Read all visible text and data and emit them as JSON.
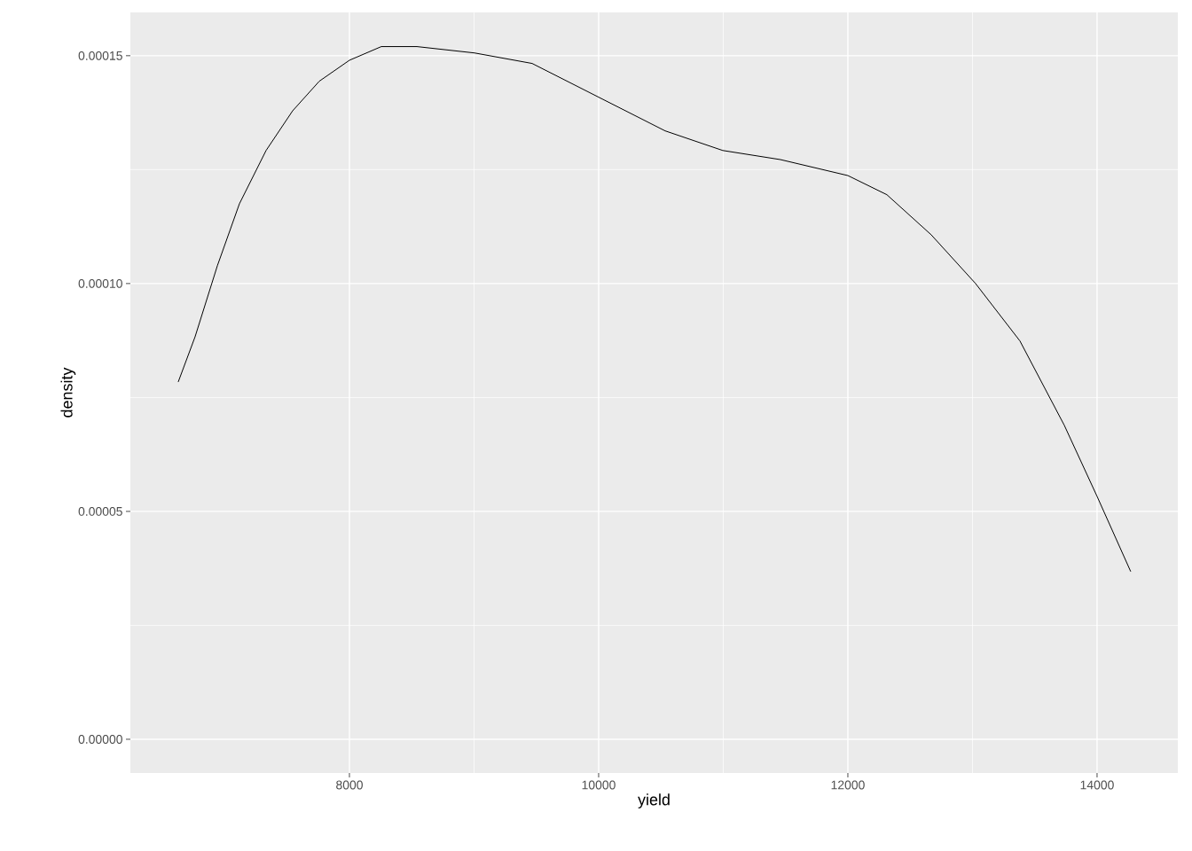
{
  "chart_data": {
    "type": "line",
    "xlabel": "yield",
    "ylabel": "density",
    "color": "#000000",
    "grid": true,
    "x": [
      6626,
      6761,
      6940,
      7117,
      7331,
      7544,
      7758,
      8000,
      8256,
      8541,
      9004,
      9466,
      10000,
      10534,
      10996,
      11459,
      12000,
      12313,
      12669,
      13025,
      13381,
      13737,
      14000,
      14270
    ],
    "values": [
      7.84e-05,
      8.83e-05,
      0.0001039,
      0.0001175,
      0.0001292,
      0.0001379,
      0.0001444,
      0.000149,
      0.000152,
      0.000152,
      0.0001506,
      0.0001483,
      0.0001409,
      0.0001335,
      0.0001292,
      0.0001272,
      0.0001237,
      0.0001195,
      0.0001107,
      0.0001,
      8.74e-05,
      6.89e-05,
      5.33e-05,
      3.68e-05
    ],
    "xlim": [
      6242,
      14648
    ],
    "ylim": [
      -7.4e-06,
      0.0001595
    ],
    "xticks": [
      8000,
      10000,
      12000,
      14000
    ],
    "yticks": [
      {
        "value": 0,
        "label": "0.00000"
      },
      {
        "value": 5e-05,
        "label": "0.00005"
      },
      {
        "value": 0.0001,
        "label": "0.00010"
      },
      {
        "value": 0.00015,
        "label": "0.00015"
      }
    ]
  }
}
